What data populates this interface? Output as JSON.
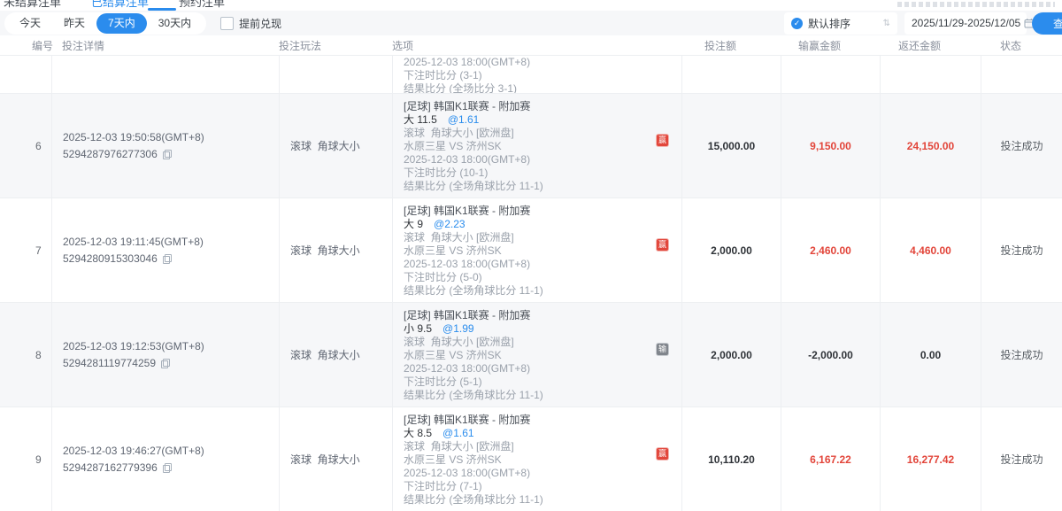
{
  "accent_color": "#2b8ced",
  "red_color": "#e2453a",
  "top_tabs": {
    "items": [
      {
        "label": "未结算注单",
        "active": false
      },
      {
        "label": "已结算注单",
        "active": true
      },
      {
        "label": "预约注单",
        "active": false
      }
    ]
  },
  "toolbar": {
    "quick_filters": [
      {
        "label": "今天",
        "active": false
      },
      {
        "label": "昨天",
        "active": false
      },
      {
        "label": "7天内",
        "active": true
      },
      {
        "label": "30天内",
        "active": false
      }
    ],
    "checkbox_label": "提前兑现",
    "checkbox_checked": false,
    "sort": {
      "label": "默认排序",
      "icon": "check-circle",
      "arrows_icon": "⇅"
    },
    "date_range": "2025/11/29-2025/12/05",
    "search_label": "查询"
  },
  "table": {
    "columns": [
      "编号",
      "投注详情",
      "投注玩法",
      "选项",
      "投注额",
      "输赢金额",
      "返还金额",
      "状态"
    ],
    "partial_row": {
      "option_lines": [
        "2025-12-03 18:00(GMT+8)",
        "下注时比分 (3-1)",
        "结果比分 (全场比分 3-1)"
      ]
    },
    "rows": [
      {
        "no": "6",
        "time": "2025-12-03 19:50:58(GMT+8)",
        "bet_id": "5294287976277306",
        "play": "滚球  角球大小",
        "option": {
          "league": "[足球] 韩国K1联赛 - 附加赛",
          "pick": "大 11.5",
          "odds": "@1.61",
          "market": "滚球  角球大小 [欧洲盘]",
          "match": "水原三星 VS 济州SK",
          "match_time": "2025-12-03 18:00(GMT+8)",
          "bet_score": "下注时比分 (10-1)",
          "result": "结果比分 (全场角球比分 11-1)"
        },
        "badge": "赢",
        "badge_type": "win",
        "bet_amount": "15,000.00",
        "win_loss": "9,150.00",
        "win_loss_red": true,
        "return_amount": "24,150.00",
        "return_red": true,
        "status": "投注成功",
        "shaded": true
      },
      {
        "no": "7",
        "time": "2025-12-03 19:11:45(GMT+8)",
        "bet_id": "5294280915303046",
        "play": "滚球  角球大小",
        "option": {
          "league": "[足球] 韩国K1联赛 - 附加赛",
          "pick": "大 9",
          "odds": "@2.23",
          "market": "滚球  角球大小 [欧洲盘]",
          "match": "水原三星 VS 济州SK",
          "match_time": "2025-12-03 18:00(GMT+8)",
          "bet_score": "下注时比分 (5-0)",
          "result": "结果比分 (全场角球比分 11-1)"
        },
        "badge": "赢",
        "badge_type": "win",
        "bet_amount": "2,000.00",
        "win_loss": "2,460.00",
        "win_loss_red": true,
        "return_amount": "4,460.00",
        "return_red": true,
        "status": "投注成功",
        "shaded": false
      },
      {
        "no": "8",
        "time": "2025-12-03 19:12:53(GMT+8)",
        "bet_id": "5294281119774259",
        "play": "滚球  角球大小",
        "option": {
          "league": "[足球] 韩国K1联赛 - 附加赛",
          "pick": "小 9.5",
          "odds": "@1.99",
          "market": "滚球  角球大小 [欧洲盘]",
          "match": "水原三星 VS 济州SK",
          "match_time": "2025-12-03 18:00(GMT+8)",
          "bet_score": "下注时比分 (5-1)",
          "result": "结果比分 (全场角球比分 11-1)"
        },
        "badge": "输",
        "badge_type": "lose",
        "bet_amount": "2,000.00",
        "win_loss": "-2,000.00",
        "win_loss_red": false,
        "return_amount": "0.00",
        "return_red": false,
        "status": "投注成功",
        "shaded": true
      },
      {
        "no": "9",
        "time": "2025-12-03 19:46:27(GMT+8)",
        "bet_id": "5294287162779396",
        "play": "滚球  角球大小",
        "option": {
          "league": "[足球] 韩国K1联赛 - 附加赛",
          "pick": "大 8.5",
          "odds": "@1.61",
          "market": "滚球  角球大小 [欧洲盘]",
          "match": "水原三星 VS 济州SK",
          "match_time": "2025-12-03 18:00(GMT+8)",
          "bet_score": "下注时比分 (7-1)",
          "result": "结果比分 (全场角球比分 11-1)"
        },
        "badge": "赢",
        "badge_type": "win",
        "bet_amount": "10,110.20",
        "win_loss": "6,167.22",
        "win_loss_red": true,
        "return_amount": "16,277.42",
        "return_red": true,
        "status": "投注成功",
        "shaded": false
      }
    ]
  }
}
